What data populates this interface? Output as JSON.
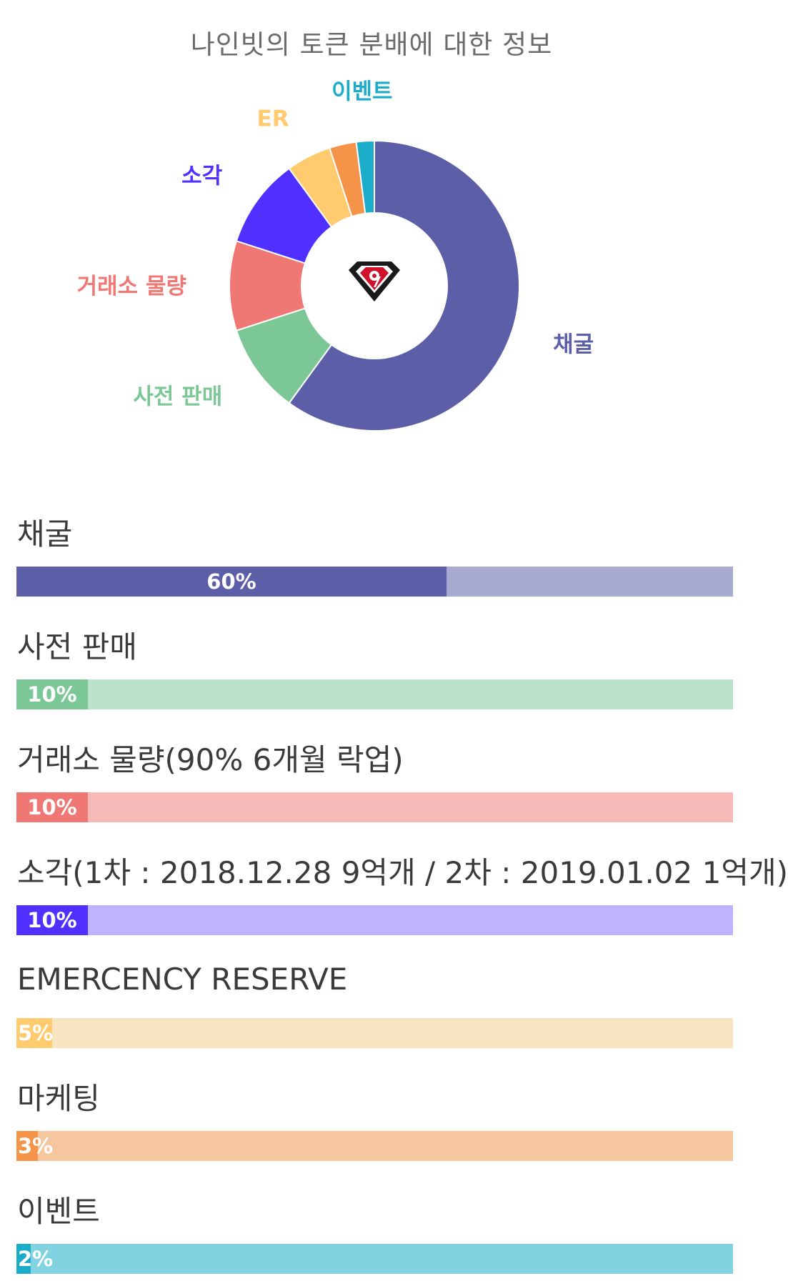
{
  "title": "나인빗의 토큰 분배에 대한 정보",
  "logo_icon": "nine-diamond-logo",
  "chart_data": {
    "type": "pie",
    "variant": "donut",
    "title": "나인빗의 토큰 분배에 대한 정보",
    "categories": [
      "채굴",
      "사전 판매",
      "거래소 물량",
      "소각",
      "ER",
      "마케팅",
      "이벤트"
    ],
    "values": [
      60,
      10,
      10,
      10,
      5,
      3,
      2
    ],
    "colors": [
      "#5c5ea8",
      "#7bc796",
      "#f07874",
      "#5030ff",
      "#ffcb6e",
      "#f59449",
      "#1aacc8"
    ],
    "labels": [
      "채굴",
      "사전 판매",
      "거래소 물량",
      "소각",
      "ER",
      "",
      "이벤트"
    ]
  },
  "items": [
    {
      "title": "채굴",
      "pct": "60%",
      "value": 60,
      "fill": "#5c5ea8",
      "track": "#a9aad2"
    },
    {
      "title": "사전 판매",
      "pct": "10%",
      "value": 10,
      "fill": "#7bc796",
      "track": "#bae1cb"
    },
    {
      "title": "거래소 물량(90% 6개월 락업)",
      "pct": "10%",
      "value": 10,
      "fill": "#f07874",
      "track": "#f5b9b8"
    },
    {
      "title": "소각(1차 : 2018.12.28 9억개 / 2차 : 2019.01.02 1억개)",
      "pct": "10%",
      "value": 10,
      "fill": "#5030ff",
      "track": "#bdb3ff"
    },
    {
      "title": "EMERCENCY RESERVE",
      "pct": "5%",
      "value": 5,
      "fill": "#ffcb6e",
      "track": "#f9e4c1"
    },
    {
      "title": "마케팅",
      "pct": "3%",
      "value": 3,
      "fill": "#f59449",
      "track": "#f6c69f"
    },
    {
      "title": "이벤트",
      "pct": "2%",
      "value": 2,
      "fill": "#1aacc8",
      "track": "#82d3e1"
    }
  ]
}
